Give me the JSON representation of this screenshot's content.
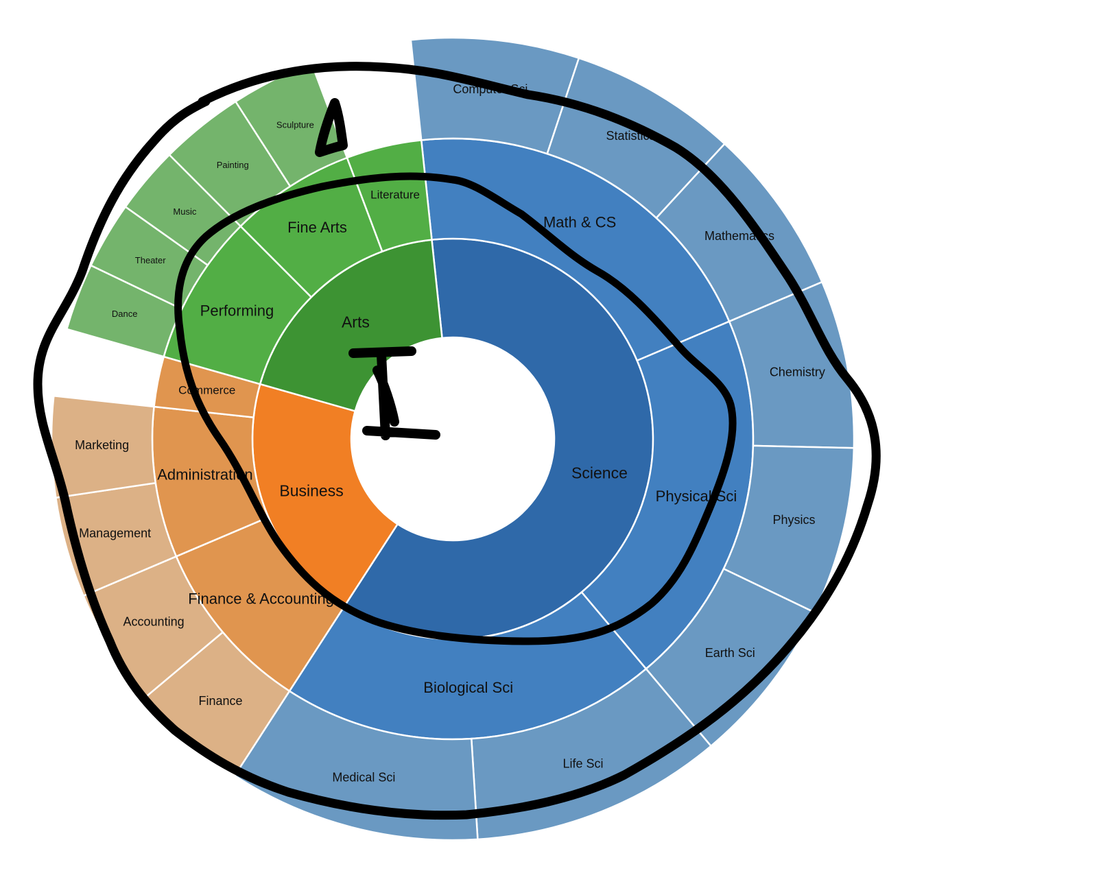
{
  "chart_data": {
    "type": "sunburst",
    "children": [
      {
        "name": "Science",
        "value": 9,
        "children": [
          {
            "name": "Math & CS",
            "value": 3,
            "children": [
              {
                "name": "Computer Sci",
                "value": 1
              },
              {
                "name": "Statistics",
                "value": 1
              },
              {
                "name": "Mathematics",
                "value": 1
              }
            ]
          },
          {
            "name": "Physical Sci",
            "value": 3,
            "children": [
              {
                "name": "Chemistry",
                "value": 1
              },
              {
                "name": "Physics",
                "value": 1
              },
              {
                "name": "Earth Sci",
                "value": 1
              }
            ]
          },
          {
            "name": "Biological Sci",
            "value": 3,
            "children": [
              {
                "name": "Life Sci",
                "value": 1.5
              },
              {
                "name": "Medical Sci",
                "value": 1.5
              }
            ]
          }
        ]
      },
      {
        "name": "Business",
        "value": 3,
        "children": [
          {
            "name": "Finance & Accounting",
            "value": 1.4,
            "children": [
              {
                "name": "Finance",
                "value": 0.7
              },
              {
                "name": "Accounting",
                "value": 0.7
              }
            ]
          },
          {
            "name": "Administration",
            "value": 1.2,
            "children": [
              {
                "name": "Management",
                "value": 0.6
              },
              {
                "name": "Marketing",
                "value": 0.6
              }
            ]
          },
          {
            "name": "Commerce",
            "value": 0.4,
            "children": []
          }
        ]
      },
      {
        "name": "Arts",
        "value": 2.8,
        "children": [
          {
            "name": "Performing",
            "value": 1.2,
            "children": [
              {
                "name": "Dance",
                "value": 0.4
              },
              {
                "name": "Theater",
                "value": 0.4
              },
              {
                "name": "Music",
                "value": 0.4
              }
            ]
          },
          {
            "name": "Fine Arts",
            "value": 1.0,
            "children": [
              {
                "name": "Painting",
                "value": 0.5
              },
              {
                "name": "Sculpture",
                "value": 0.5
              }
            ]
          },
          {
            "name": "Literature",
            "value": 0.6,
            "children": []
          }
        ]
      }
    ],
    "colors": {
      "Science": [
        "#2f69a9",
        "#4280c0",
        "#6a99c2"
      ],
      "Business": [
        "#f17f24",
        "#e0954f",
        "#dcb186"
      ],
      "Arts": [
        "#3d9333",
        "#52ae45",
        "#74b46c"
      ]
    },
    "outer_rotation_deg": -6
  }
}
